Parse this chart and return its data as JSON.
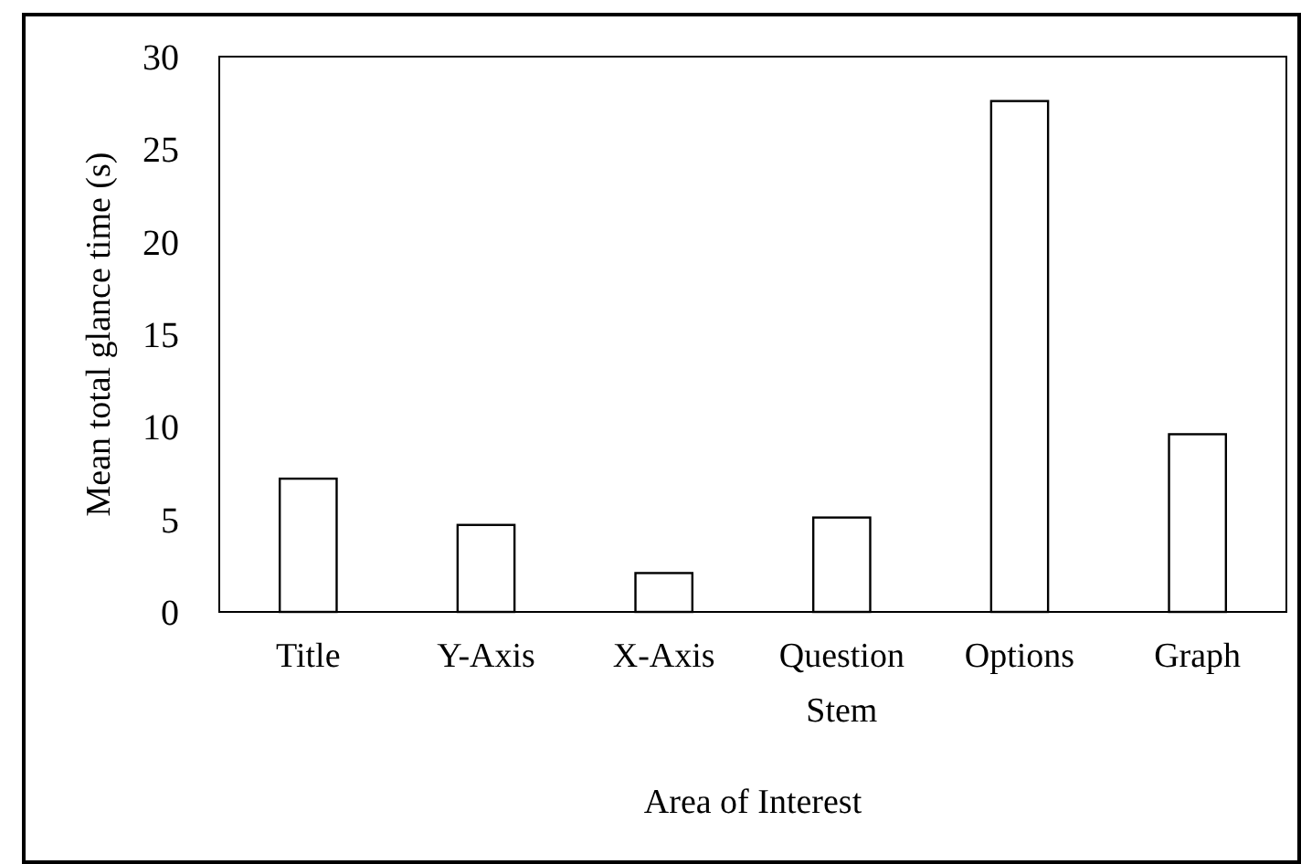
{
  "chart_data": {
    "type": "bar",
    "xlabel": "Area of Interest",
    "ylabel": "Mean total glance time (s)",
    "categories": [
      "Title",
      "Y-Axis",
      "X-Axis",
      "Question Stem",
      "Options",
      "Graph"
    ],
    "values": [
      7.2,
      4.7,
      2.1,
      5.1,
      27.6,
      9.6
    ],
    "color": "#ffffff",
    "ylim": [
      0,
      30
    ],
    "yticks": [
      0,
      5,
      10,
      15,
      20,
      25,
      30
    ],
    "grid": false
  }
}
